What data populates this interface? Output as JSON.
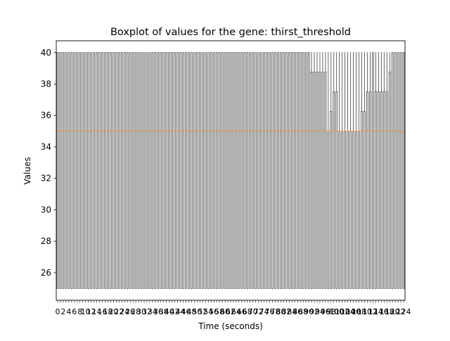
{
  "chart_data": {
    "type": "box",
    "title": "Boxplot of values for the gene: thirst_threshold",
    "xlabel": "Time (seconds)",
    "ylabel": "Values",
    "ylim": [
      24.25,
      40.75
    ],
    "yticks": [
      26,
      28,
      30,
      32,
      34,
      36,
      38,
      40
    ],
    "grid": false,
    "legend": "none",
    "box_count": 125,
    "x_ticks_every": 2,
    "summary": {
      "whisker_low": 25,
      "median": 35,
      "whisker_high": 40
    },
    "q1": 25,
    "q3_default": 40,
    "q3_overrides": [
      {
        "from": 91,
        "to": 96,
        "q3": 38.75
      },
      {
        "from": 97,
        "to": 97,
        "q3": 35
      },
      {
        "from": 98,
        "to": 98,
        "q3": 36.25
      },
      {
        "from": 99,
        "to": 100,
        "q3": 37.5
      },
      {
        "from": 101,
        "to": 108,
        "q3": 35
      },
      {
        "from": 109,
        "to": 110,
        "q3": 36.25
      },
      {
        "from": 111,
        "to": 112,
        "q3": 37.5
      },
      {
        "from": 113,
        "to": 113,
        "q3": 40
      },
      {
        "from": 114,
        "to": 116,
        "q3": 37.5
      },
      {
        "from": 117,
        "to": 118,
        "q3": 37.5
      },
      {
        "from": 119,
        "to": 119,
        "q3": 38.75
      },
      {
        "from": 120,
        "to": 124,
        "q3": 40
      }
    ],
    "colors": {
      "box": "#000000",
      "median": "#ff7f0e",
      "axes": "#000000"
    }
  }
}
